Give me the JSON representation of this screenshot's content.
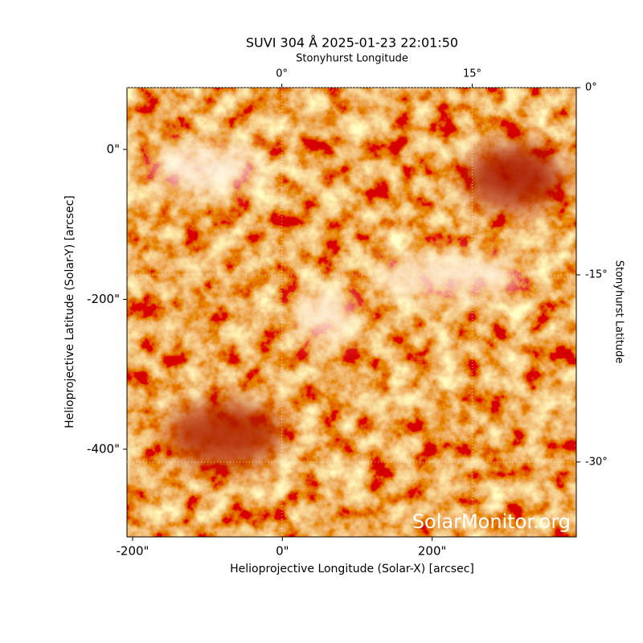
{
  "chart_data": {
    "type": "image",
    "title": "SUVI 304 Å 2025-01-23 22:01:50",
    "x_label": "Helioprojective Longitude (Solar-X) [arcsec]",
    "y_label": "Helioprojective Latitude (Solar-Y) [arcsec]",
    "x2_label": "Stonyhurst Longitude",
    "y2_label": "Stonyhurst Latitude",
    "watermark": "SolarMonitor.org",
    "xlim": [
      -207.5,
      392.5
    ],
    "ylim": [
      -517,
      82.5
    ],
    "xticks": [
      {
        "value": -200,
        "label": "-200\""
      },
      {
        "value": 0,
        "label": "0\""
      },
      {
        "value": 200,
        "label": "200\""
      }
    ],
    "yticks": [
      {
        "value": 0,
        "label": "0\""
      },
      {
        "value": -200,
        "label": "-200\""
      },
      {
        "value": -400,
        "label": "-400\""
      }
    ],
    "x2lim": [
      -12.2,
      23.2
    ],
    "y2lim": [
      0,
      -36
    ],
    "x2ticks": [
      {
        "value": 0,
        "label": "0°"
      },
      {
        "value": 15,
        "label": "15°"
      }
    ],
    "y2ticks": [
      {
        "value": 0,
        "label": "0°"
      },
      {
        "value": -15,
        "label": "-15°"
      },
      {
        "value": -30,
        "label": "-30°"
      }
    ],
    "grid": true
  }
}
